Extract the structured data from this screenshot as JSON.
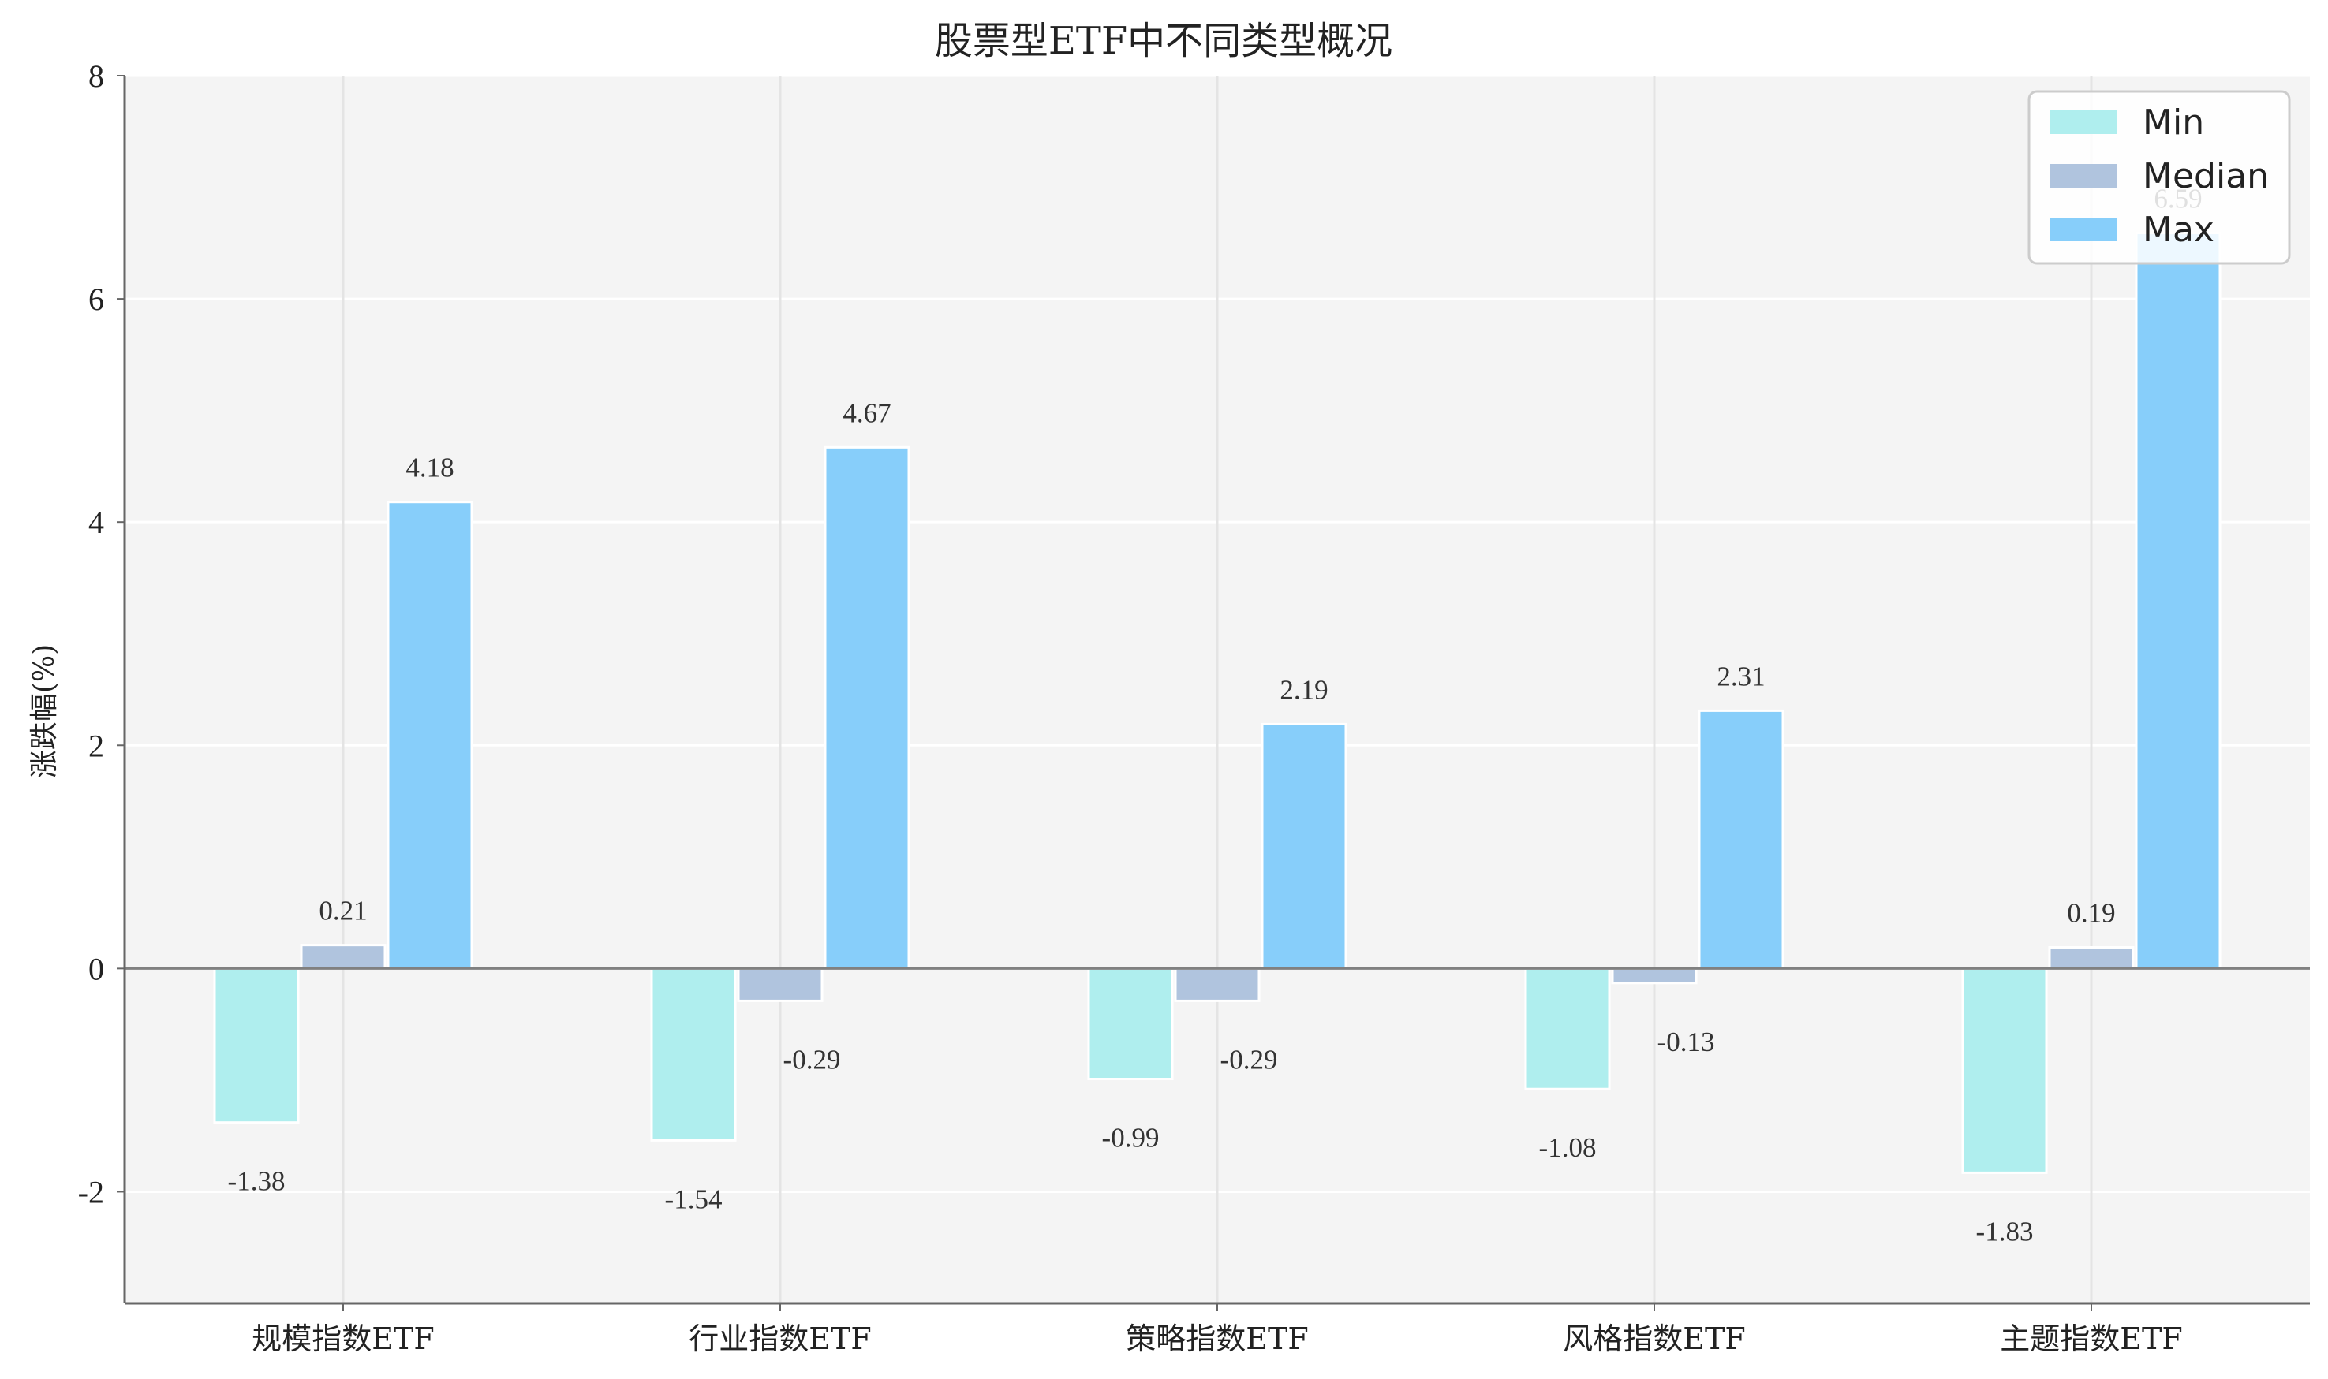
{
  "chart_data": {
    "type": "bar",
    "title": "股票型ETF中不同类型概况",
    "ylabel": "涨跌幅(%)",
    "xlabel": "",
    "categories": [
      "规模指数ETF",
      "行业指数ETF",
      "策略指数ETF",
      "风格指数ETF",
      "主题指数ETF"
    ],
    "series": [
      {
        "name": "Min",
        "color": "#afeeee",
        "values": [
          -1.38,
          -1.54,
          -0.99,
          -1.08,
          -1.83
        ]
      },
      {
        "name": "Median",
        "color": "#b0c4de",
        "values": [
          0.21,
          -0.29,
          -0.29,
          -0.13,
          0.19
        ]
      },
      {
        "name": "Max",
        "color": "#87cefa",
        "values": [
          4.18,
          4.67,
          2.19,
          2.31,
          6.59
        ]
      }
    ],
    "ylim": [
      -3,
      8
    ],
    "yticks": [
      -2,
      0,
      2,
      4,
      6,
      8
    ],
    "grid": true,
    "legend": "top-right"
  }
}
